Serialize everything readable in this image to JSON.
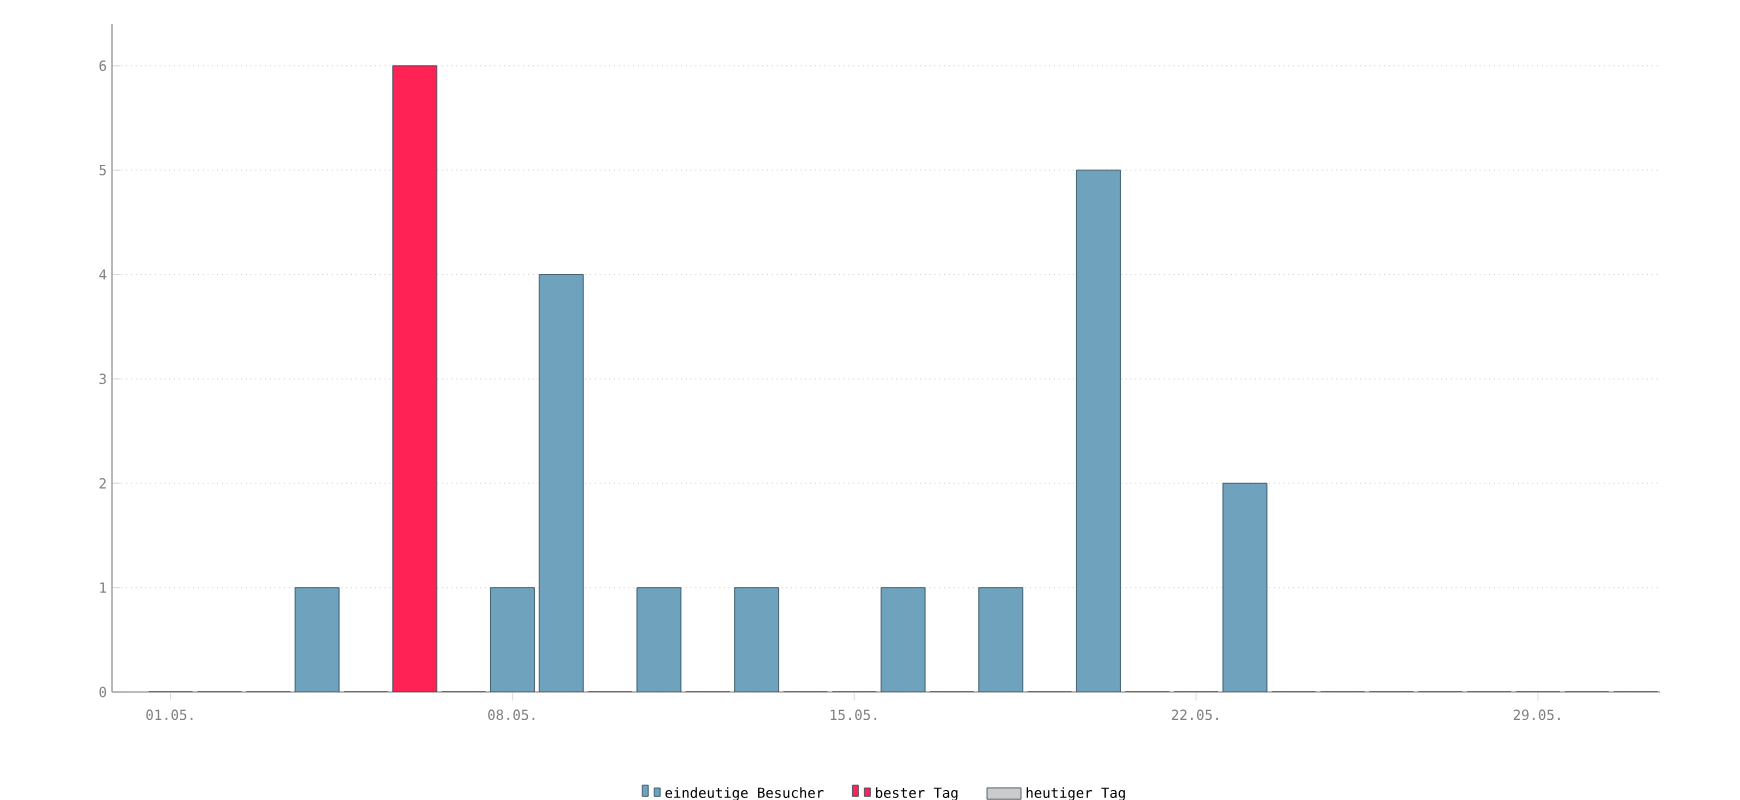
{
  "chart_data": {
    "type": "bar",
    "categories": [
      "01.05.",
      null,
      null,
      null,
      null,
      null,
      null,
      "08.05.",
      null,
      null,
      null,
      null,
      null,
      null,
      "15.05.",
      null,
      null,
      null,
      null,
      null,
      null,
      "22.05.",
      null,
      null,
      null,
      null,
      null,
      null,
      "29.05.",
      null,
      null
    ],
    "series": [
      {
        "name": "eindeutige Besucher",
        "color": "#6fa3bd",
        "values": [
          0,
          0,
          0,
          1,
          0,
          null,
          0,
          1,
          4,
          0,
          1,
          0,
          1,
          0,
          0,
          1,
          0,
          1,
          0,
          5,
          0,
          0,
          2,
          0,
          0,
          0,
          0,
          0,
          0,
          0,
          0
        ]
      },
      {
        "name": "bester Tag",
        "color": "#ff2255",
        "values": [
          null,
          null,
          null,
          null,
          null,
          6,
          null,
          null,
          null,
          null,
          null,
          null,
          null,
          null,
          null,
          null,
          null,
          null,
          null,
          null,
          null,
          null,
          null,
          null,
          null,
          null,
          null,
          null,
          null,
          null,
          null
        ]
      },
      {
        "name": "heutiger Tag",
        "color": "#cccccc",
        "values": [
          null,
          null,
          null,
          null,
          null,
          null,
          null,
          null,
          null,
          null,
          null,
          null,
          null,
          null,
          null,
          null,
          null,
          null,
          null,
          null,
          null,
          null,
          null,
          null,
          null,
          null,
          null,
          null,
          null,
          null,
          null
        ]
      }
    ],
    "ylim": [
      0,
      6.4
    ],
    "yticks": [
      0,
      1,
      2,
      3,
      4,
      5,
      6
    ],
    "grid": "y",
    "legend": "bottom"
  }
}
